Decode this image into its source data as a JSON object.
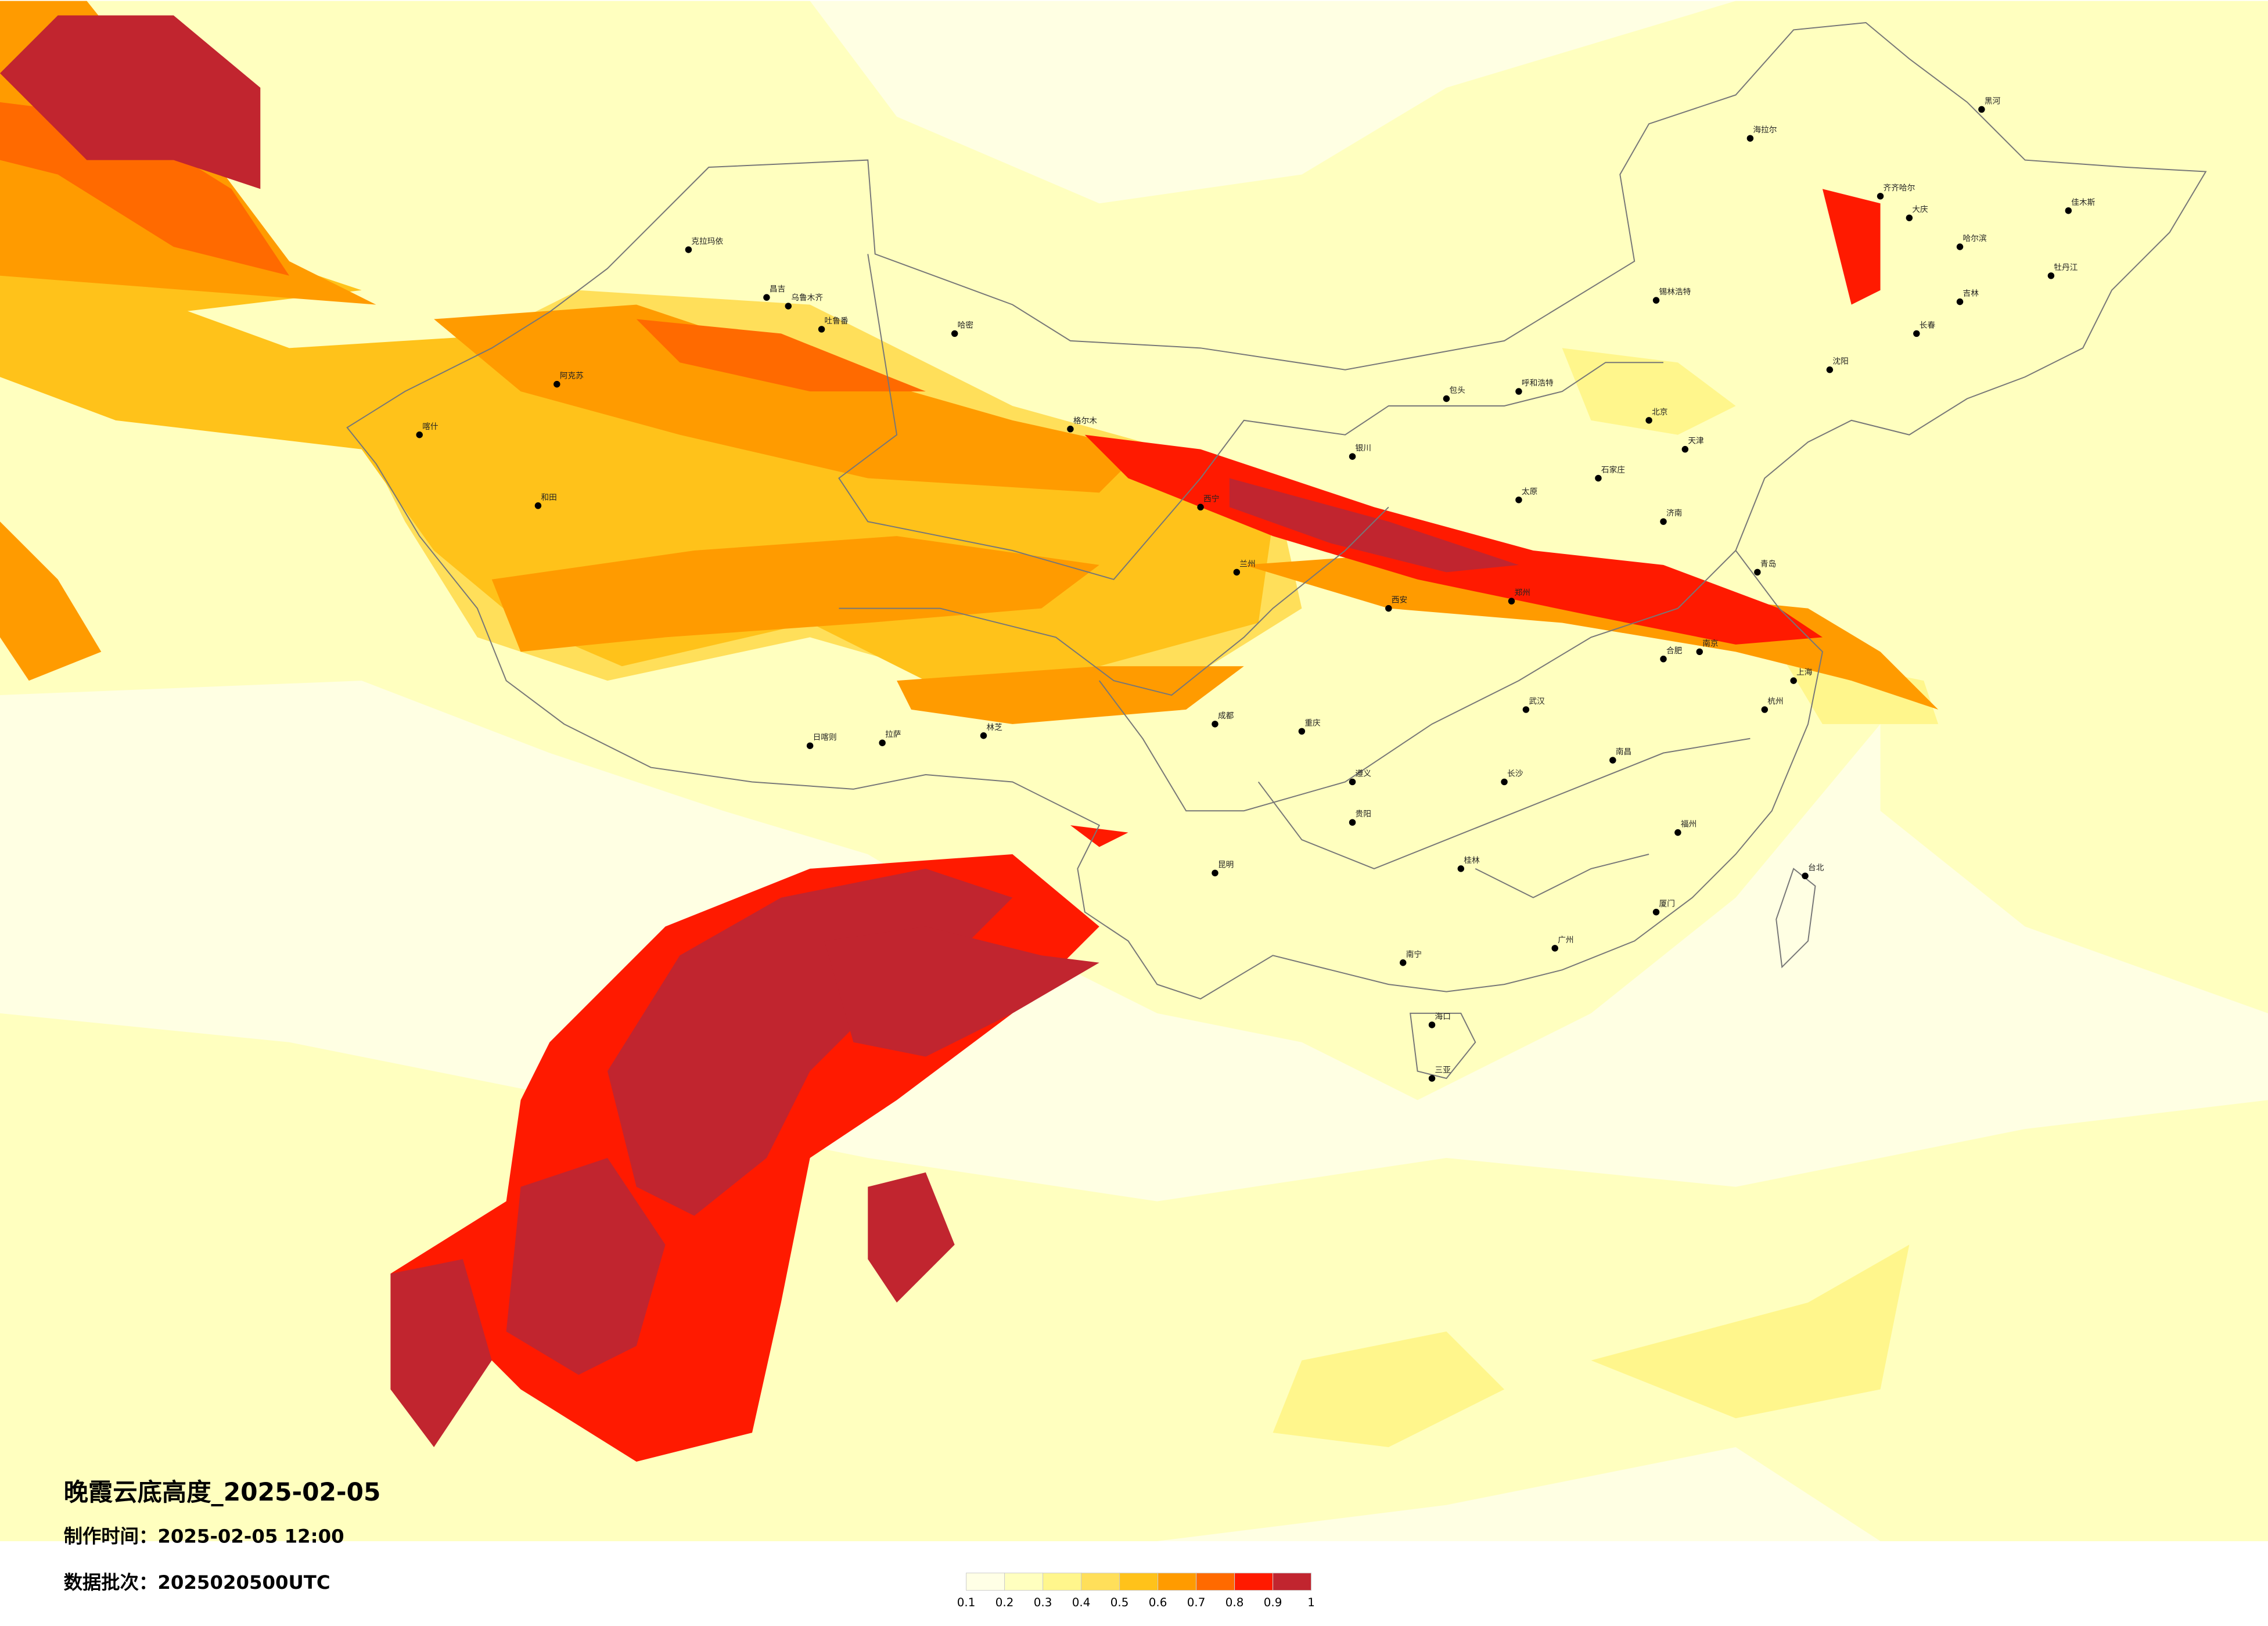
{
  "title": "晚霞云底高度_2025-02-05",
  "made_time": "制作时间：2025-02-05 12:00",
  "batch": "数据批次：2025020500UTC",
  "background": "#ffffe3",
  "legend": {
    "ticks": [
      0.1,
      0.2,
      0.3,
      0.4,
      0.5,
      0.6,
      0.7,
      0.8,
      0.9,
      1
    ],
    "colors": [
      "#ffffe6",
      "#ffffbf",
      "#fff68c",
      "#ffdf5a",
      "#ffc21a",
      "#ff9b00",
      "#ff6a00",
      "#ff1a00",
      "#c1252f"
    ]
  },
  "cities": [
    "克拉玛依",
    "昌吉",
    "乌鲁木齐",
    "吐鲁番",
    "哈密",
    "阿克苏",
    "喀什",
    "和田",
    "格尔木",
    "西宁",
    "兰州",
    "日喀则",
    "拉萨",
    "林芝",
    "成都",
    "重庆",
    "昆明",
    "贵阳",
    "南宁",
    "海口",
    "三亚",
    "广州",
    "福州",
    "台北",
    "上海",
    "南京",
    "武汉",
    "长沙",
    "南昌",
    "郑州",
    "西安",
    "太原",
    "石家庄",
    "北京",
    "天津",
    "济南",
    "青岛",
    "沈阳",
    "长春",
    "哈尔滨",
    "齐齐哈尔",
    "呼和浩特",
    "包头",
    "银川",
    "海拉尔",
    "锡林浩特",
    "大庆",
    "吉林",
    "牡丹江",
    "佳木斯",
    "黑河",
    "合肥",
    "杭州",
    "厦门",
    "桂林",
    "遵义"
  ]
}
